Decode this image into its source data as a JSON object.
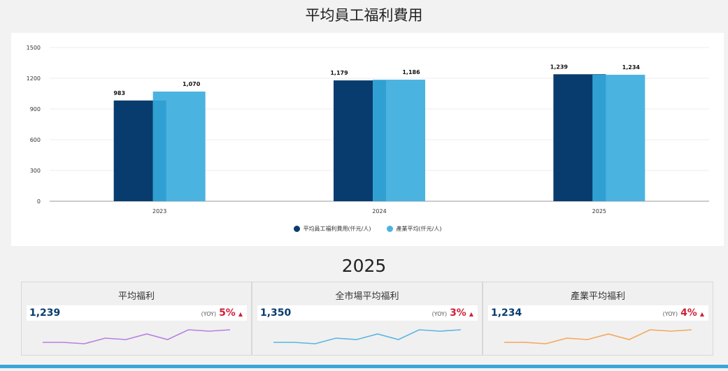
{
  "title": "平均員工福利費用",
  "chart_data": {
    "type": "bar",
    "categories": [
      "2023",
      "2024",
      "2025"
    ],
    "series": [
      {
        "name": "平均員工福利費用(仟元/人)",
        "values": [
          983,
          1179,
          1239
        ],
        "labels": [
          "983",
          "1,179",
          "1,239"
        ],
        "color": "#083c6e"
      },
      {
        "name": "產業平均(仟元/人)",
        "values": [
          1070,
          1186,
          1234
        ],
        "labels": [
          "1,070",
          "1,186",
          "1,234"
        ],
        "color": "#4bb3e0"
      }
    ],
    "overlap_color": "#30a0d2",
    "yticks": [
      0,
      300,
      600,
      900,
      1200,
      1500
    ],
    "ylim": [
      0,
      1500
    ],
    "legend_position": "bottom"
  },
  "kpi_year": "2025",
  "kpi_cards": [
    {
      "title": "平均福利",
      "value": "1,239",
      "yoy_label": "(YOY)",
      "change": "5%",
      "direction_icon": "up-triangle-icon",
      "line_color": "#b77fe0",
      "trend": [
        2,
        2,
        1,
        5,
        4,
        8,
        4,
        11,
        10,
        11
      ]
    },
    {
      "title": "全市場平均福利",
      "value": "1,350",
      "yoy_label": "(YOY)",
      "change": "3%",
      "direction_icon": "up-triangle-icon",
      "line_color": "#5ab5e3",
      "trend": [
        2,
        2,
        1,
        5,
        4,
        8,
        4,
        11,
        10,
        11
      ]
    },
    {
      "title": "產業平均福利",
      "value": "1,234",
      "yoy_label": "(YOY)",
      "change": "4%",
      "direction_icon": "up-triangle-icon",
      "line_color": "#f5a65b",
      "trend": [
        2,
        2,
        1,
        5,
        4,
        8,
        4,
        11,
        10,
        11
      ]
    }
  ]
}
